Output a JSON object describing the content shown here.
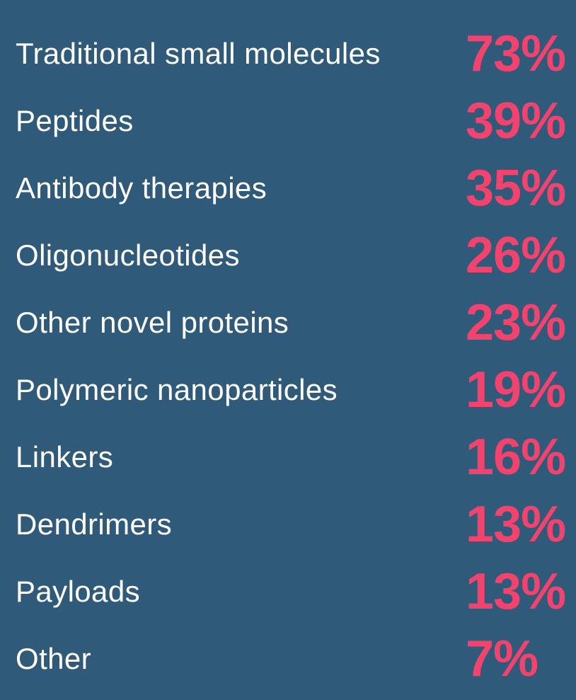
{
  "items": [
    {
      "label": "Traditional small molecules",
      "value": "73%"
    },
    {
      "label": "Peptides",
      "value": "39%"
    },
    {
      "label": "Antibody therapies",
      "value": "35%"
    },
    {
      "label": "Oligonucleotides",
      "value": "26%"
    },
    {
      "label": "Other novel proteins",
      "value": "23%"
    },
    {
      "label": "Polymeric nanoparticles",
      "value": "19%"
    },
    {
      "label": "Linkers",
      "value": "16%"
    },
    {
      "label": "Dendrimers",
      "value": "13%"
    },
    {
      "label": "Payloads",
      "value": "13%"
    },
    {
      "label": "Other",
      "value": "7%"
    }
  ]
}
